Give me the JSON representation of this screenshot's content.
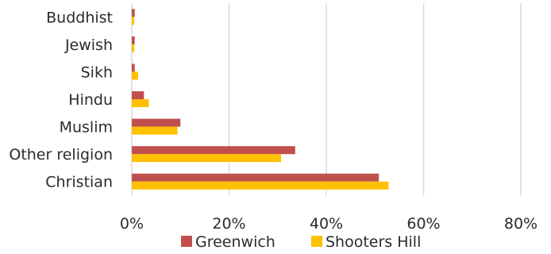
{
  "chart_data": {
    "type": "bar",
    "orientation": "horizontal",
    "categories": [
      "Buddhist",
      "Jewish",
      "Sikh",
      "Hindu",
      "Muslim",
      "Other religion",
      "Christian"
    ],
    "series": [
      {
        "name": "Greenwich",
        "color": "#C0504D",
        "values": [
          0.6,
          0.6,
          0.6,
          2.5,
          10.0,
          33.6,
          50.8
        ]
      },
      {
        "name": "Shooters Hill",
        "color": "#FFC000",
        "values": [
          0.5,
          0.5,
          1.3,
          3.5,
          9.4,
          30.7,
          52.8
        ]
      }
    ],
    "xlim": [
      0,
      80
    ],
    "xticks": [
      "0%",
      "20%",
      "40%",
      "60%",
      "80%"
    ],
    "xtick_values": [
      0,
      20,
      40,
      60,
      80
    ],
    "grid": "vertical",
    "legend": "bottom"
  }
}
